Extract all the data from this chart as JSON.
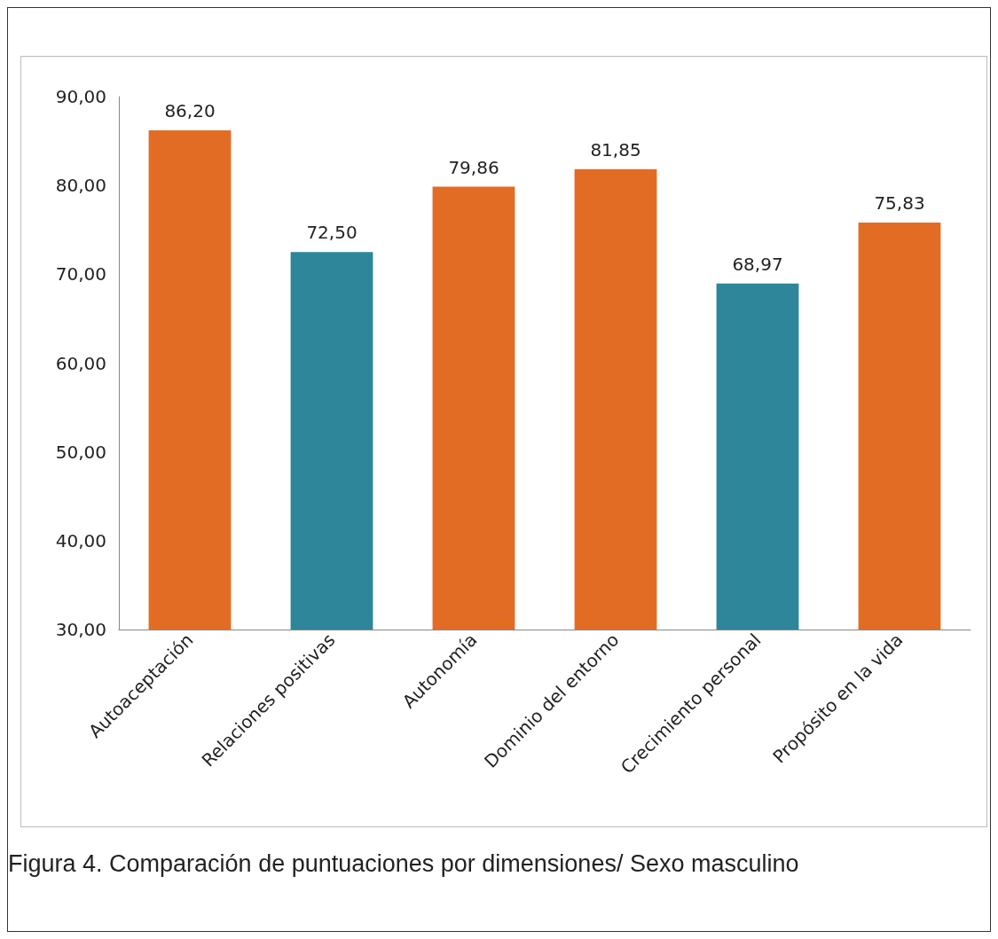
{
  "chart_data": {
    "type": "bar",
    "categories": [
      "Autoaceptación",
      "Relaciones positivas",
      "Autonomía",
      "Dominio del entorno",
      "Crecimiento personal",
      "Propósito en la vida"
    ],
    "values": [
      86.2,
      72.5,
      79.86,
      81.85,
      68.97,
      75.83
    ],
    "value_labels": [
      "86,20",
      "72,50",
      "79,86",
      "81,85",
      "68,97",
      "75,83"
    ],
    "colors": [
      "#e36c25",
      "#2e869b",
      "#e36c25",
      "#e36c25",
      "#2e869b",
      "#e36c25"
    ],
    "ylim": [
      30,
      90
    ],
    "yticks": [
      {
        "value": 30,
        "label": "30,00"
      },
      {
        "value": 40,
        "label": "40,00"
      },
      {
        "value": 50,
        "label": "50,00"
      },
      {
        "value": 60,
        "label": "60,00"
      },
      {
        "value": 70,
        "label": "70,00"
      },
      {
        "value": 80,
        "label": "80,00"
      },
      {
        "value": 90,
        "label": "90,00"
      }
    ],
    "grid": false,
    "annotations": [
      "Figura 4. Comparación de puntuaciones por dimensiones/ Sexo masculino"
    ]
  }
}
